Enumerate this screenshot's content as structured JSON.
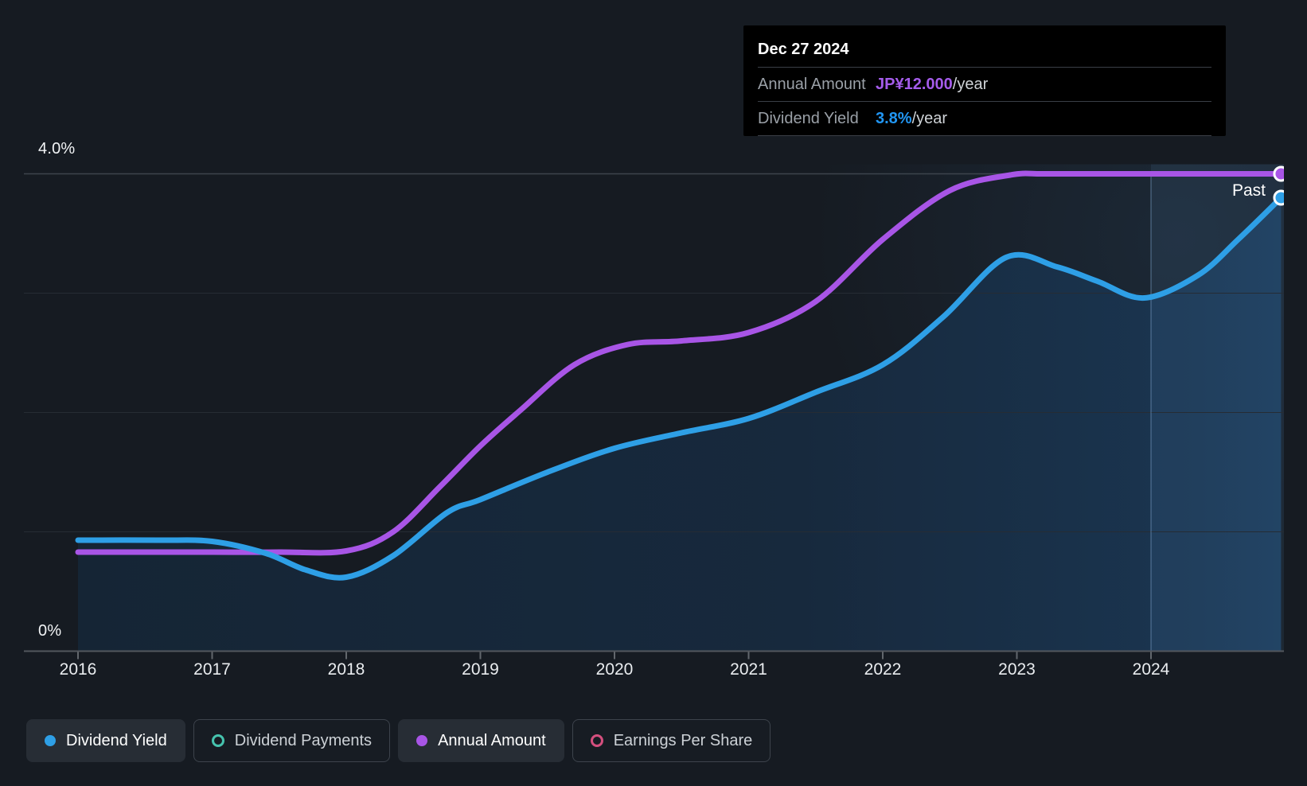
{
  "page": {
    "background": "#161b22"
  },
  "tooltip": {
    "date": "Dec 27 2024",
    "rows": [
      {
        "label": "Annual Amount",
        "value": "JP¥12.000",
        "suffix": "/year",
        "value_color": "#a55ceb"
      },
      {
        "label": "Dividend Yield",
        "value": "3.8%",
        "suffix": "/year",
        "value_color": "#2196f3"
      }
    ]
  },
  "past_label": "Past",
  "legend": {
    "items": [
      {
        "label": "Dividend Yield",
        "color": "#2e9fe6",
        "swatch": "filled",
        "active": true
      },
      {
        "label": "Dividend Payments",
        "color": "#46c3ae",
        "swatch": "ring",
        "active": false
      },
      {
        "label": "Annual Amount",
        "color": "#a855e6",
        "swatch": "filled",
        "active": true
      },
      {
        "label": "Earnings Per Share",
        "color": "#d44f7e",
        "swatch": "ring",
        "active": false
      }
    ]
  },
  "chart_data": {
    "type": "line",
    "x_ticks": [
      2016,
      2017,
      2018,
      2019,
      2020,
      2021,
      2022,
      2023,
      2024
    ],
    "y_axis": {
      "top_label": "4.0%",
      "zero_label": "0%",
      "unit": "percent",
      "range": [
        0,
        4.0
      ],
      "gridline_values": [
        4,
        3,
        2,
        1
      ]
    },
    "grid": "on",
    "legend_position": "bottom",
    "past_divider_x": 2024,
    "colors": {
      "dividend_yield": "#2e9fe6",
      "annual_amount": "#a855e6",
      "dividend_payments": "#46c3ae",
      "earnings_per_share": "#d44f7e"
    },
    "series": [
      {
        "name": "Dividend Yield",
        "color": "#2e9fe6",
        "area": true,
        "end_value_pct": 3.8,
        "points": [
          [
            2016.0,
            0.93
          ],
          [
            2016.6,
            0.93
          ],
          [
            2017.0,
            0.92
          ],
          [
            2017.4,
            0.82
          ],
          [
            2017.7,
            0.68
          ],
          [
            2018.0,
            0.62
          ],
          [
            2018.35,
            0.8
          ],
          [
            2018.75,
            1.16
          ],
          [
            2019.0,
            1.27
          ],
          [
            2019.5,
            1.5
          ],
          [
            2020.0,
            1.7
          ],
          [
            2020.5,
            1.83
          ],
          [
            2021.0,
            1.95
          ],
          [
            2021.5,
            2.17
          ],
          [
            2022.0,
            2.4
          ],
          [
            2022.45,
            2.8
          ],
          [
            2022.92,
            3.3
          ],
          [
            2023.3,
            3.22
          ],
          [
            2023.6,
            3.1
          ],
          [
            2023.95,
            2.96
          ],
          [
            2024.35,
            3.15
          ],
          [
            2024.65,
            3.45
          ],
          [
            2024.97,
            3.8
          ]
        ]
      },
      {
        "name": "Annual Amount",
        "color": "#a855e6",
        "area": false,
        "end_value_label": "JP¥12.000/year",
        "points": [
          [
            2016.0,
            0.83
          ],
          [
            2016.6,
            0.83
          ],
          [
            2017.0,
            0.83
          ],
          [
            2017.5,
            0.83
          ],
          [
            2018.0,
            0.84
          ],
          [
            2018.35,
            1.0
          ],
          [
            2018.7,
            1.38
          ],
          [
            2019.0,
            1.72
          ],
          [
            2019.3,
            2.02
          ],
          [
            2019.7,
            2.4
          ],
          [
            2020.1,
            2.57
          ],
          [
            2020.5,
            2.6
          ],
          [
            2021.0,
            2.67
          ],
          [
            2021.5,
            2.93
          ],
          [
            2022.0,
            3.45
          ],
          [
            2022.5,
            3.86
          ],
          [
            2022.95,
            3.99
          ],
          [
            2023.2,
            4.0
          ],
          [
            2023.6,
            4.0
          ],
          [
            2024.0,
            4.0
          ],
          [
            2024.5,
            4.0
          ],
          [
            2024.97,
            4.0
          ]
        ]
      }
    ]
  }
}
